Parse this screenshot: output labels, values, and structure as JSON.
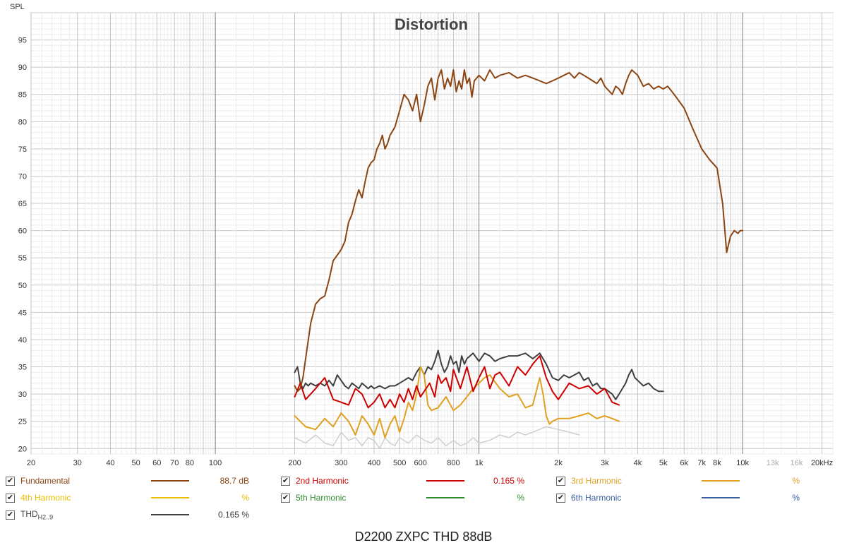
{
  "chart_data": {
    "type": "line",
    "title": "Distortion",
    "ylabel": "SPL",
    "xlabel": "",
    "x_scale": "log",
    "xlim": [
      20,
      22000
    ],
    "ylim": [
      19,
      100
    ],
    "grid": true,
    "x_ticks": [
      {
        "label": "20",
        "value": 20
      },
      {
        "label": "30",
        "value": 30
      },
      {
        "label": "40",
        "value": 40
      },
      {
        "label": "50",
        "value": 50
      },
      {
        "label": "60",
        "value": 60
      },
      {
        "label": "70",
        "value": 70
      },
      {
        "label": "80",
        "value": 80
      },
      {
        "label": "100",
        "value": 100
      },
      {
        "label": "200",
        "value": 200
      },
      {
        "label": "300",
        "value": 300
      },
      {
        "label": "400",
        "value": 400
      },
      {
        "label": "500",
        "value": 500
      },
      {
        "label": "600",
        "value": 600
      },
      {
        "label": "800",
        "value": 800
      },
      {
        "label": "1k",
        "value": 1000
      },
      {
        "label": "2k",
        "value": 2000
      },
      {
        "label": "3k",
        "value": 3000
      },
      {
        "label": "4k",
        "value": 4000
      },
      {
        "label": "5k",
        "value": 5000
      },
      {
        "label": "6k",
        "value": 6000
      },
      {
        "label": "7k",
        "value": 7000
      },
      {
        "label": "8k",
        "value": 8000
      },
      {
        "label": "10k",
        "value": 10000
      },
      {
        "label": "13k",
        "value": 13000,
        "faint": true
      },
      {
        "label": "16k",
        "value": 16000,
        "faint": true
      },
      {
        "label": "20kHz",
        "value": 20000
      }
    ],
    "y_ticks": [
      20,
      25,
      30,
      35,
      40,
      45,
      50,
      55,
      60,
      65,
      70,
      75,
      80,
      85,
      90,
      95
    ],
    "series": [
      {
        "name": "Fundamental",
        "color": "#8B4513",
        "x": [
          200,
          205,
          210,
          215,
          220,
          230,
          240,
          250,
          260,
          270,
          280,
          290,
          300,
          310,
          320,
          330,
          340,
          350,
          360,
          370,
          380,
          390,
          400,
          410,
          420,
          430,
          440,
          450,
          460,
          480,
          500,
          520,
          540,
          560,
          580,
          600,
          620,
          640,
          660,
          680,
          700,
          720,
          740,
          760,
          780,
          800,
          820,
          840,
          860,
          880,
          900,
          920,
          940,
          960,
          1000,
          1050,
          1100,
          1150,
          1200,
          1300,
          1400,
          1500,
          1600,
          1700,
          1800,
          1900,
          2000,
          2100,
          2200,
          2300,
          2400,
          2500,
          2600,
          2700,
          2800,
          2900,
          3000,
          3200,
          3300,
          3400,
          3500,
          3600,
          3700,
          3800,
          4000,
          4200,
          4400,
          4600,
          4800,
          5000,
          5200,
          5500,
          6000,
          6500,
          7000,
          7500,
          8000,
          8400,
          8700,
          9000,
          9300,
          9600,
          9800,
          10000
        ],
        "y": [
          31.5,
          30.5,
          31.0,
          33.0,
          36.5,
          43.0,
          46.5,
          47.5,
          48.0,
          51.0,
          54.5,
          55.5,
          56.5,
          58.0,
          61.5,
          63.0,
          65.5,
          67.5,
          66.0,
          69.0,
          71.5,
          72.5,
          73.0,
          75.0,
          76.0,
          77.5,
          75.0,
          76.0,
          77.5,
          79.0,
          82.0,
          85.0,
          84.0,
          82.0,
          85.0,
          80.0,
          83.0,
          86.5,
          88.0,
          84.0,
          88.0,
          89.5,
          86.0,
          88.0,
          86.5,
          89.5,
          85.5,
          87.5,
          86.0,
          89.5,
          87.0,
          88.0,
          84.5,
          87.5,
          88.5,
          87.5,
          89.5,
          88.0,
          88.5,
          89.0,
          88.0,
          88.5,
          88.0,
          87.5,
          87.0,
          87.5,
          88.0,
          88.5,
          89.0,
          88.0,
          89.0,
          88.5,
          88.0,
          87.5,
          87.0,
          88.0,
          86.5,
          85.0,
          86.5,
          86.0,
          85.0,
          87.0,
          88.5,
          89.5,
          88.5,
          86.5,
          87.0,
          86.0,
          86.5,
          86.0,
          86.5,
          85.0,
          82.5,
          78.5,
          75.0,
          73.0,
          71.5,
          65.0,
          56.0,
          59.0,
          60.0,
          59.5,
          60.0,
          60.0
        ]
      },
      {
        "name": "2nd Harmonic",
        "color": "#CC0000",
        "x": [
          200,
          210,
          220,
          240,
          260,
          280,
          300,
          320,
          340,
          360,
          380,
          400,
          420,
          440,
          460,
          480,
          500,
          520,
          540,
          560,
          580,
          600,
          620,
          650,
          680,
          700,
          720,
          750,
          780,
          800,
          850,
          900,
          950,
          1000,
          1050,
          1100,
          1150,
          1200,
          1300,
          1400,
          1500,
          1600,
          1700,
          1800,
          1900,
          2000,
          2200,
          2400,
          2600,
          2800,
          3000,
          3200,
          3400
        ],
        "y": [
          29.5,
          32.0,
          29.0,
          31.0,
          33.0,
          29.0,
          28.5,
          28.0,
          31.0,
          30.0,
          27.5,
          28.5,
          30.0,
          27.5,
          29.0,
          27.5,
          30.0,
          28.5,
          31.0,
          29.0,
          31.5,
          29.5,
          30.5,
          32.0,
          29.5,
          33.5,
          32.0,
          33.0,
          30.5,
          34.5,
          31.0,
          35.0,
          30.5,
          33.0,
          35.0,
          31.0,
          33.5,
          34.0,
          31.5,
          35.0,
          33.5,
          35.5,
          37.0,
          33.0,
          30.5,
          29.0,
          32.0,
          31.0,
          31.5,
          30.0,
          31.0,
          28.5,
          28.0
        ]
      },
      {
        "name": "3rd Harmonic",
        "color": "#E0A020",
        "x": [
          200,
          220,
          240,
          260,
          280,
          300,
          320,
          340,
          360,
          380,
          400,
          420,
          440,
          460,
          480,
          500,
          520,
          540,
          560,
          580,
          600,
          620,
          640,
          660,
          700,
          750,
          800,
          850,
          900,
          950,
          1000,
          1050,
          1100,
          1200,
          1300,
          1400,
          1500,
          1600,
          1650,
          1700,
          1750,
          1800,
          1850,
          1900,
          2000,
          2200,
          2400,
          2600,
          2800,
          3000,
          3200,
          3400
        ],
        "y": [
          26.0,
          24.0,
          23.5,
          25.5,
          24.0,
          26.5,
          25.0,
          22.5,
          26.0,
          24.5,
          22.5,
          25.5,
          22.0,
          24.5,
          26.0,
          23.0,
          25.5,
          28.5,
          27.0,
          30.0,
          35.0,
          33.5,
          28.0,
          27.0,
          27.5,
          29.5,
          27.0,
          28.0,
          29.5,
          31.0,
          32.0,
          33.0,
          33.5,
          31.0,
          29.5,
          30.0,
          27.5,
          28.0,
          30.5,
          33.0,
          30.0,
          26.0,
          24.5,
          25.0,
          25.5,
          25.5,
          26.0,
          26.5,
          25.5,
          26.0,
          25.5,
          25.0
        ]
      },
      {
        "name": "4th Harmonic",
        "color": "#E8C000",
        "x": [],
        "y": []
      },
      {
        "name": "5th Harmonic",
        "color": "#2E8B2E",
        "x": [],
        "y": []
      },
      {
        "name": "6th Harmonic",
        "color": "#3A5FA0",
        "x": [],
        "y": []
      },
      {
        "name": "THD",
        "color": "#404040",
        "x": [
          200,
          205,
          210,
          215,
          220,
          225,
          230,
          240,
          250,
          260,
          270,
          280,
          290,
          300,
          310,
          320,
          330,
          340,
          350,
          360,
          370,
          380,
          390,
          400,
          420,
          440,
          460,
          480,
          500,
          520,
          540,
          560,
          580,
          600,
          620,
          640,
          660,
          680,
          700,
          720,
          740,
          760,
          780,
          800,
          820,
          840,
          860,
          880,
          900,
          950,
          1000,
          1050,
          1100,
          1150,
          1200,
          1300,
          1400,
          1500,
          1600,
          1700,
          1800,
          1900,
          2000,
          2100,
          2200,
          2300,
          2400,
          2500,
          2600,
          2700,
          2800,
          2900,
          3000,
          3200,
          3300,
          3400,
          3500,
          3600,
          3700,
          3800,
          3900,
          4000,
          4200,
          4400,
          4600,
          4800,
          5000
        ],
        "y": [
          34.0,
          35.0,
          32.0,
          31.0,
          32.0,
          31.5,
          32.0,
          31.5,
          32.0,
          31.5,
          32.5,
          31.5,
          33.5,
          32.5,
          31.5,
          31.0,
          32.0,
          31.5,
          31.0,
          32.0,
          31.5,
          31.0,
          31.5,
          31.0,
          31.5,
          31.0,
          31.5,
          31.5,
          32.0,
          32.5,
          33.0,
          32.5,
          34.0,
          35.0,
          33.5,
          35.0,
          34.5,
          36.0,
          38.0,
          35.5,
          34.0,
          35.0,
          37.0,
          35.5,
          36.0,
          34.0,
          37.0,
          35.5,
          36.5,
          37.5,
          36.0,
          37.5,
          37.0,
          36.0,
          36.5,
          37.0,
          37.0,
          37.5,
          36.5,
          37.5,
          35.5,
          33.0,
          32.5,
          33.5,
          33.0,
          33.5,
          34.0,
          32.5,
          33.0,
          31.5,
          32.0,
          31.0,
          31.0,
          30.0,
          29.0,
          30.0,
          31.0,
          32.0,
          33.5,
          34.5,
          33.0,
          32.5,
          31.5,
          32.0,
          31.0,
          30.5,
          30.5
        ]
      },
      {
        "name": "noise",
        "color": "#CFCFCF",
        "x": [
          200,
          220,
          240,
          260,
          280,
          300,
          320,
          340,
          360,
          380,
          400,
          420,
          440,
          460,
          480,
          500,
          540,
          580,
          620,
          660,
          700,
          750,
          800,
          850,
          900,
          950,
          1000,
          1100,
          1200,
          1300,
          1400,
          1500,
          1600,
          1800,
          2000,
          2200,
          2400
        ],
        "y": [
          22.0,
          21.0,
          22.5,
          21.0,
          20.5,
          23.0,
          21.5,
          22.0,
          20.5,
          22.0,
          21.5,
          20.0,
          22.0,
          21.0,
          20.5,
          22.0,
          21.0,
          22.5,
          21.5,
          21.0,
          22.0,
          20.5,
          21.5,
          20.5,
          21.0,
          22.0,
          21.0,
          21.5,
          22.5,
          22.0,
          23.0,
          22.5,
          23.0,
          24.0,
          23.5,
          23.0,
          22.5
        ]
      }
    ]
  },
  "axis": {
    "y_unit_label": "SPL"
  },
  "legend": [
    {
      "name": "Fundamental",
      "value": "88.7 dB",
      "color": "#8B4513",
      "checked": true
    },
    {
      "name": "2nd Harmonic",
      "value": "0.165 %",
      "color": "#CC0000",
      "checked": true
    },
    {
      "name": "3rd Harmonic",
      "value": "%",
      "color": "#E0A020",
      "checked": true
    },
    {
      "name": "4th Harmonic",
      "value": "%",
      "color": "#E8C000",
      "checked": true
    },
    {
      "name": "5th Harmonic",
      "value": "%",
      "color": "#2E8B2E",
      "checked": true
    },
    {
      "name": "6th Harmonic",
      "value": "%",
      "color": "#3A5FA0",
      "checked": true
    },
    {
      "name": "THD",
      "subscript": "H2..9",
      "value": "0.165 %",
      "color": "#404040",
      "checked": true
    }
  ],
  "check_glyph": "✔",
  "footer_caption": "D2200 ZXPC THD 88dB"
}
